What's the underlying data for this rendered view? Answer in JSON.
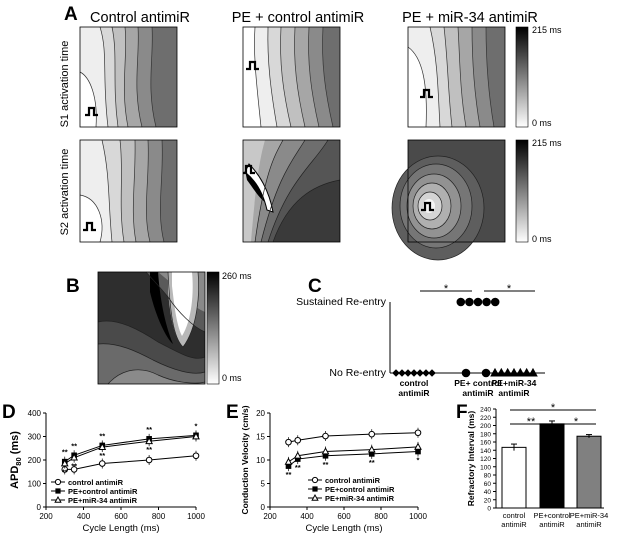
{
  "panel_letters": {
    "a": "A",
    "b": "B",
    "c": "C",
    "d": "D",
    "e": "E",
    "f": "F"
  },
  "panel_a": {
    "columns": [
      "Control antimiR",
      "PE + control antimiR",
      "PE + miR-34 antimiR"
    ],
    "rows": [
      "S1 activation time",
      "S2 activation time"
    ],
    "scale_top": {
      "max": "215 ms",
      "min": "0 ms"
    },
    "scale_bottom": {
      "max": "215 ms",
      "min": "0 ms"
    }
  },
  "panel_b": {
    "scale": {
      "max": "260 ms",
      "min": "0 ms"
    }
  },
  "chart_data": [
    {
      "panel": "C",
      "type": "scatter",
      "y_categories": [
        "No Re-entry",
        "Sustained Re-entry"
      ],
      "categories": [
        "control antimiR",
        "PE+ control antimiR",
        "PE+miR-34 antimiR"
      ],
      "tick_lines": [
        [
          "control",
          "antimiR"
        ],
        [
          "PE+ control",
          "antimiR"
        ],
        [
          "PE+miR-34",
          "antimiR"
        ]
      ],
      "series": [
        {
          "name": "control antimiR",
          "marker": "diamond",
          "no_reentry": 7,
          "sustained": 0
        },
        {
          "name": "PE+ control antimiR",
          "marker": "circle",
          "no_reentry": 2,
          "sustained": 5
        },
        {
          "name": "PE+miR-34 antimiR",
          "marker": "triangle",
          "no_reentry": 7,
          "sustained": 0
        }
      ],
      "significance": [
        "*",
        "*"
      ]
    },
    {
      "panel": "D",
      "type": "line",
      "ylabel_main": "APD",
      "ylabel_sub": "80",
      "ylabel_unit": " (ms)",
      "xlabel": "Cycle Length (ms)",
      "xlim": [
        200,
        1000
      ],
      "ylim": [
        0,
        400
      ],
      "xticks": [
        200,
        400,
        600,
        800,
        1000
      ],
      "yticks": [
        0,
        100,
        200,
        300,
        400
      ],
      "x": [
        300,
        350,
        500,
        750,
        1000
      ],
      "series": [
        {
          "name": "control antimiR",
          "marker": "open-circle",
          "values": [
            160,
            160,
            185,
            200,
            218
          ]
        },
        {
          "name": "PE+control antimiR",
          "marker": "filled-square",
          "values": [
            193,
            220,
            262,
            290,
            305
          ]
        },
        {
          "name": "PE+miR-34 antimiR",
          "marker": "open-triangle",
          "values": [
            185,
            210,
            255,
            280,
            300
          ]
        }
      ],
      "annotations": [
        "**",
        "**",
        "**",
        "**",
        "**",
        "**",
        "**",
        "**",
        "*"
      ]
    },
    {
      "panel": "E",
      "type": "line",
      "ylabel": "Conduction Velocity (cm/s)",
      "xlabel": "Cycle Length (ms)",
      "xlim": [
        200,
        1000
      ],
      "ylim": [
        0,
        20
      ],
      "xticks": [
        200,
        400,
        600,
        800,
        1000
      ],
      "yticks": [
        0,
        5,
        10,
        15,
        20
      ],
      "x": [
        300,
        350,
        500,
        750,
        1000
      ],
      "series": [
        {
          "name": "control antimiR",
          "marker": "open-circle",
          "values": [
            13.8,
            14.2,
            15.1,
            15.5,
            15.8
          ]
        },
        {
          "name": "PE+control antimiR",
          "marker": "filled-square",
          "values": [
            8.7,
            10.2,
            10.9,
            11.3,
            11.8
          ]
        },
        {
          "name": "PE+miR-34 antimiR",
          "marker": "open-triangle",
          "values": [
            9.6,
            10.9,
            11.8,
            12.2,
            12.8
          ]
        }
      ],
      "annotations": [
        "**",
        "**",
        "**",
        "**",
        "**",
        "**",
        "**",
        "**",
        "*"
      ]
    },
    {
      "panel": "F",
      "type": "bar",
      "ylabel": "Refractory Interval (ms)",
      "ylim": [
        0,
        240
      ],
      "yticks": [
        0,
        20,
        40,
        60,
        80,
        100,
        120,
        140,
        160,
        180,
        200,
        220,
        240
      ],
      "categories": [
        "control antimiR",
        "PE+control antimiR",
        "PE+miR-34 antimiR"
      ],
      "tick_lines": [
        [
          "control",
          "antimiR"
        ],
        [
          "PE+control",
          "antimiR"
        ],
        [
          "PE+miR-34",
          "antimiR"
        ]
      ],
      "values": [
        147,
        204,
        174
      ],
      "errors": [
        8,
        7,
        4
      ],
      "colors": [
        "#ffffff",
        "#000000",
        "#808080"
      ],
      "significance": [
        "*",
        "**",
        "*"
      ]
    }
  ]
}
